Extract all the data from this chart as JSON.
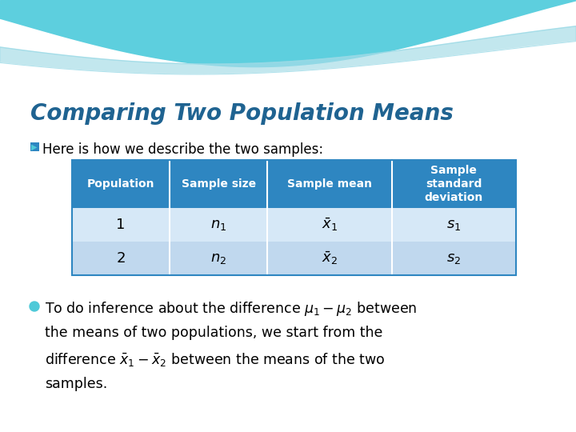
{
  "title": "Comparing Two Population Means",
  "title_color": "#1F6391",
  "background_color": "#FFFFFF",
  "header_bg": "#2E86C1",
  "row1_bg": "#D6E8F7",
  "row2_bg": "#C0D8EE",
  "header_text_color": "#FFFFFF",
  "bullet_color": "#4EC9D8",
  "table_headers": [
    "Population",
    "Sample size",
    "Sample mean",
    "Sample\nstandard\ndeviation"
  ],
  "table_row1": [
    "1",
    "$n_1$",
    "$\\bar{x}_1$",
    "$s_1$"
  ],
  "table_row2": [
    "2",
    "$n_2$",
    "$\\bar{x}_2$",
    "$s_2$"
  ],
  "bullet1_text": "Here is how we describe the two samples:",
  "bullet2_line1": "To do inference about the difference $\\mu_1 - \\mu_2$ between",
  "bullet2_line2": "the means of two populations, we start from the",
  "bullet2_line3": "difference $\\bar{x}_1 - \\bar{x}_2$ between the means of the two",
  "bullet2_line4": "samples.",
  "wave_top_color": "#5DCFDE",
  "wave_mid_color": "#A8DDE8",
  "wave_light_color": "#C8EEF5",
  "figsize": [
    7.2,
    5.4
  ],
  "dpi": 100
}
